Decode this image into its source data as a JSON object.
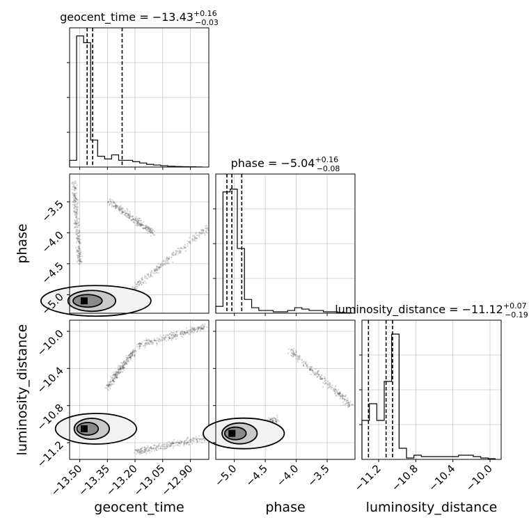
{
  "chart_data": {
    "type": "corner",
    "parameters": [
      "geocent_time",
      "phase",
      "luminosity_distance"
    ],
    "titles": [
      {
        "param": "geocent_time",
        "label": "geocent_time = ",
        "median": "−13.43",
        "plus": "+0.16",
        "minus": "−0.03"
      },
      {
        "param": "phase",
        "label": "phase = ",
        "median": "−5.04",
        "plus": "+0.16",
        "minus": "−0.08"
      },
      {
        "param": "luminosity_distance",
        "label": "luminosity_distance = ",
        "median": "−11.12",
        "plus": "+0.07",
        "minus": "−0.19"
      }
    ],
    "axes": {
      "geocent_time": {
        "range": [
          -13.555,
          -12.8
        ],
        "ticks": [
          -13.5,
          -13.35,
          -13.2,
          -13.05,
          -12.9
        ],
        "tick_labels": [
          "−13.50",
          "−13.35",
          "−13.20",
          "−13.05",
          "−12.90"
        ]
      },
      "phase": {
        "range": [
          -5.3,
          -3.05
        ],
        "ticks": [
          -5.0,
          -4.5,
          -4.0,
          -3.5
        ],
        "tick_labels": [
          "−5.0",
          "−4.5",
          "−4.0",
          "−3.5"
        ]
      },
      "luminosity_distance": {
        "range": [
          -11.38,
          -9.88
        ],
        "ticks": [
          -11.2,
          -10.8,
          -10.4,
          -10.0
        ],
        "tick_labels": [
          "−11.2",
          "−10.8",
          "−10.4",
          "−10.0"
        ]
      }
    },
    "histograms": {
      "geocent_time": {
        "bin_edges": [
          -13.555,
          -13.517,
          -13.479,
          -13.441,
          -13.403,
          -13.365,
          -13.327,
          -13.289,
          -13.251,
          -13.213,
          -13.175,
          -13.137,
          -13.099,
          -13.061,
          -13.023,
          -12.985,
          -12.947,
          -12.909,
          -12.871,
          -12.833
        ],
        "counts": [
          5,
          97,
          92,
          20,
          8,
          6,
          9,
          5,
          5,
          4,
          3,
          2,
          1.5,
          1,
          0.6,
          0.4,
          0.3,
          0.2,
          0.1
        ],
        "quantiles": [
          -13.46,
          -13.43,
          -13.27
        ],
        "ymax": 103
      },
      "phase": {
        "bin_edges": [
          -5.3,
          -5.184,
          -5.068,
          -4.952,
          -4.836,
          -4.72,
          -4.604,
          -4.488,
          -4.372,
          -4.256,
          -4.14,
          -4.024,
          -3.908,
          -3.792,
          -3.676,
          -3.56,
          -3.444,
          -3.328,
          -3.212,
          -3.096
        ],
        "counts": [
          5,
          88,
          90,
          47,
          10,
          4,
          2,
          2,
          1,
          1,
          2,
          4,
          3,
          2,
          2,
          1,
          1,
          0.5,
          0.3
        ],
        "quantiles": [
          -5.12,
          -5.04,
          -4.88
        ],
        "ymax": 101
      },
      "luminosity_distance": {
        "bin_edges": [
          -11.38,
          -11.3,
          -11.22,
          -11.14,
          -11.06,
          -10.98,
          -10.9,
          -10.82,
          -10.74,
          -10.66,
          -10.58,
          -10.5,
          -10.42,
          -10.34,
          -10.26,
          -10.18,
          -10.1,
          -10.02,
          -9.94
        ],
        "counts": [
          28,
          40,
          28,
          56,
          90,
          8,
          1,
          3,
          2,
          2,
          2,
          2,
          2,
          3,
          3,
          2,
          1,
          0.5
        ],
        "quantiles": [
          -11.31,
          -11.12,
          -11.05
        ],
        "ymax": 100
      }
    },
    "samples": {
      "geocent_time_vs_phase": {
        "core": {
          "x": -13.48,
          "y": -5.1
        },
        "arcs": [
          {
            "from": [
              -13.5,
              -4.5
            ],
            "to": [
              -13.53,
              -3.2
            ]
          },
          {
            "from": [
              -13.34,
              -3.5
            ],
            "to": [
              -13.1,
              -4.0
            ]
          },
          {
            "from": [
              -13.25,
              -5.0
            ],
            "to": [
              -12.8,
              -3.9
            ]
          }
        ]
      },
      "geocent_time_vs_luminosity_distance": {
        "core": {
          "x": -13.48,
          "y": -11.05
        },
        "arcs": [
          {
            "from": [
              -13.2,
              -11.3
            ],
            "to": [
              -12.82,
              -11.15
            ]
          },
          {
            "from": [
              -13.35,
              -10.6
            ],
            "to": [
              -13.2,
              -10.2
            ]
          },
          {
            "from": [
              -13.18,
              -10.15
            ],
            "to": [
              -12.82,
              -9.95
            ]
          }
        ]
      },
      "phase_vs_luminosity_distance": {
        "core": {
          "x": -5.05,
          "y": -11.1
        },
        "arcs": [
          {
            "from": [
              -5.0,
              -11.05
            ],
            "to": [
              -4.3,
              -10.95
            ]
          },
          {
            "from": [
              -4.1,
              -10.2
            ],
            "to": [
              -3.1,
              -10.8
            ]
          }
        ]
      }
    },
    "grid": true
  }
}
